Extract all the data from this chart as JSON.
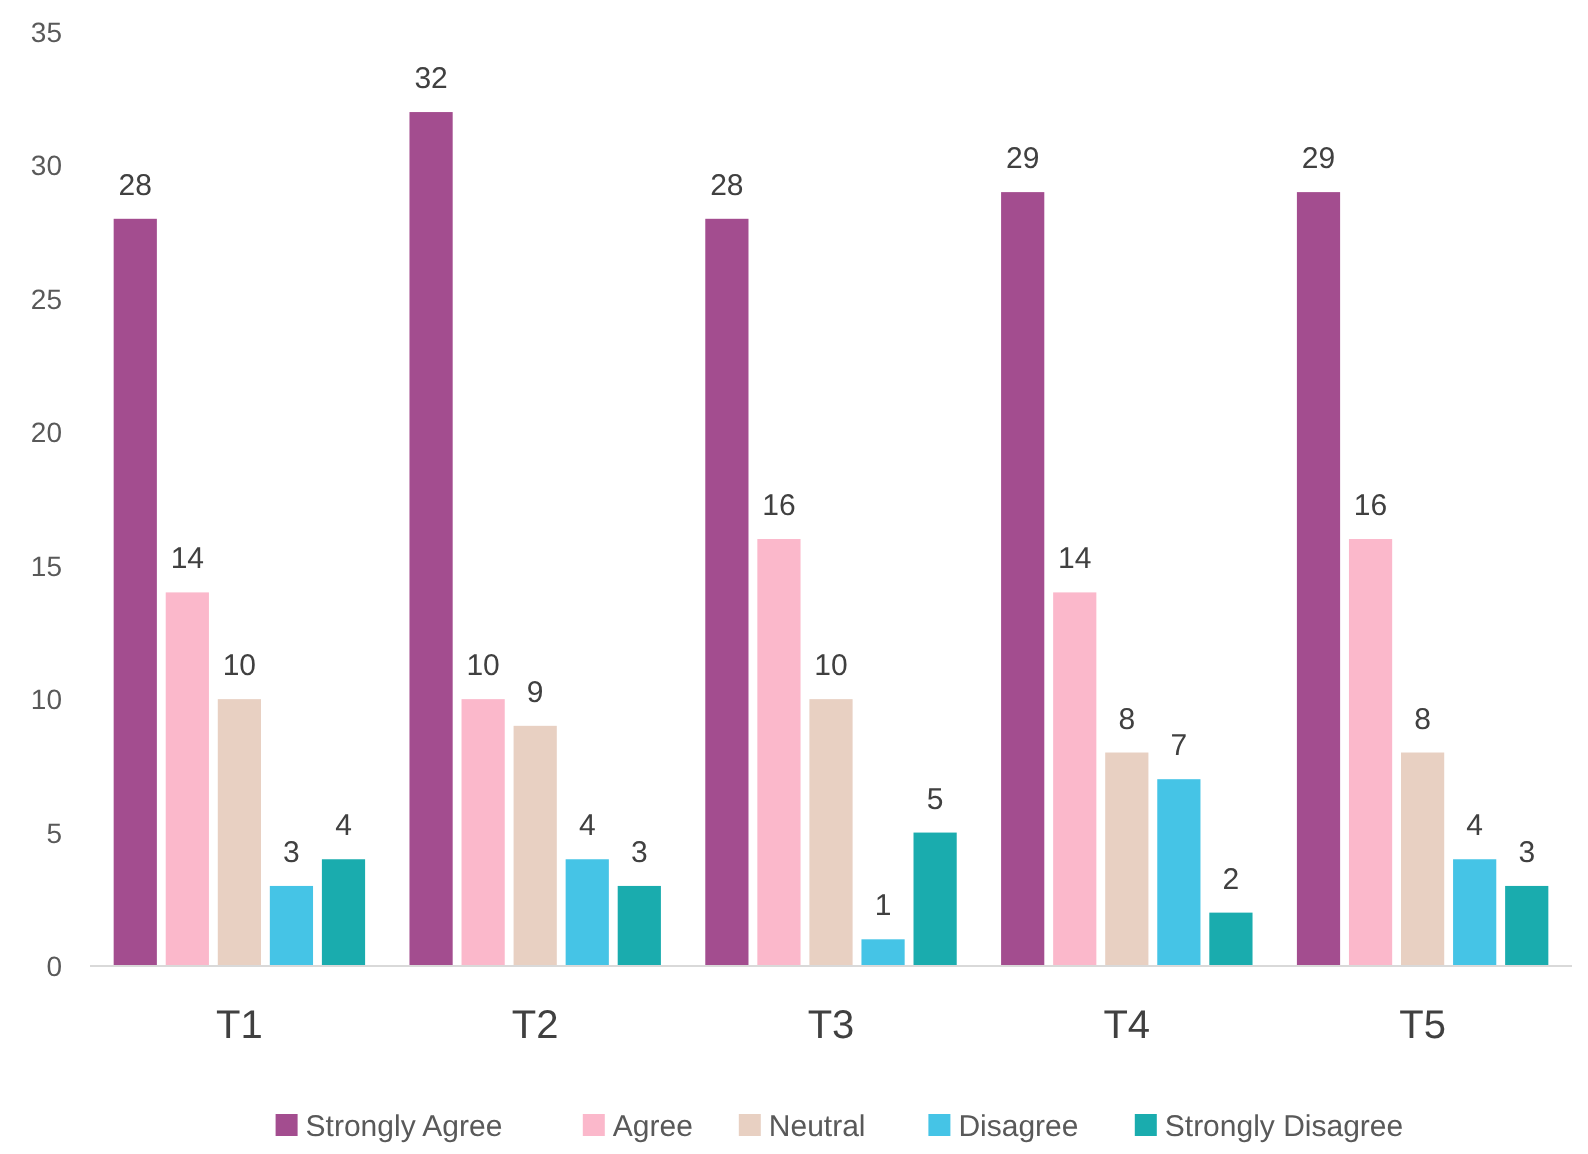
{
  "chart_data": {
    "type": "bar",
    "categories": [
      "T1",
      "T2",
      "T3",
      "T4",
      "T5"
    ],
    "series": [
      {
        "name": "Strongly Agree",
        "color": "#a34d8f",
        "values": [
          28,
          32,
          28,
          29,
          29
        ]
      },
      {
        "name": "Agree",
        "color": "#fbb8cb",
        "values": [
          14,
          10,
          16,
          14,
          16
        ]
      },
      {
        "name": "Neutral",
        "color": "#e8d0c2",
        "values": [
          10,
          9,
          10,
          8,
          8
        ]
      },
      {
        "name": "Disagree",
        "color": "#45c4e6",
        "values": [
          3,
          4,
          1,
          7,
          4
        ]
      },
      {
        "name": "Strongly Disagree",
        "color": "#1aacae",
        "values": [
          4,
          3,
          5,
          2,
          3
        ]
      }
    ],
    "ylim": [
      0,
      35
    ],
    "yticks": [
      0,
      5,
      10,
      15,
      20,
      25,
      30,
      35
    ],
    "grid": false,
    "legend": "bottom",
    "data_labels": true
  }
}
